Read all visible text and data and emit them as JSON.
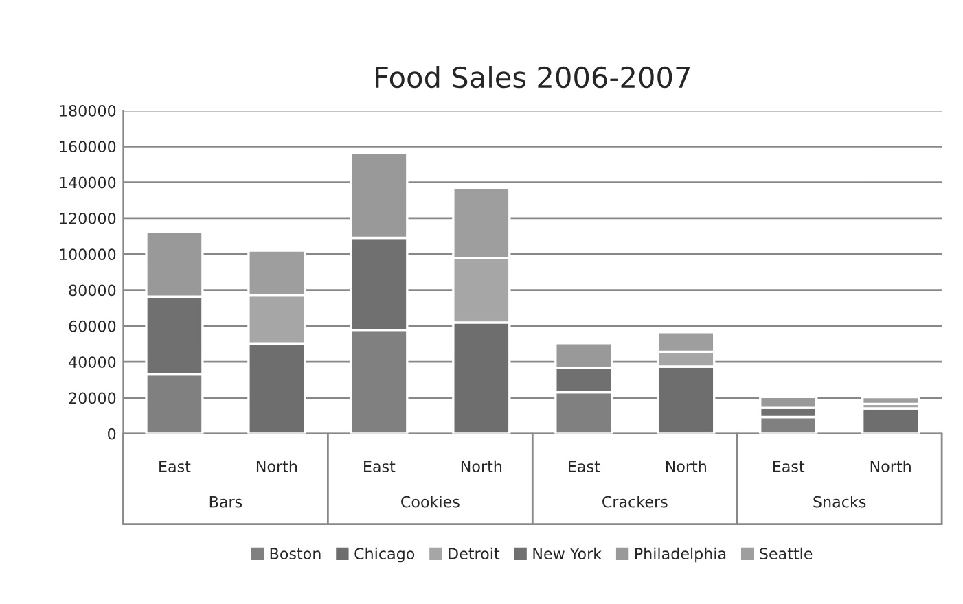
{
  "chart_data": {
    "type": "bar",
    "title": "Food Sales 2006-2007",
    "stacked": true,
    "categories": [
      "East",
      "North",
      "East",
      "North",
      "East",
      "North",
      "East",
      "North"
    ],
    "annotations": [
      "Bars",
      "Cookies",
      "Crackers",
      "Snacks"
    ],
    "series": [
      {
        "name": "Boston",
        "color": "#808080",
        "values": [
          33000,
          null,
          57800,
          null,
          23000,
          null,
          9300,
          null
        ]
      },
      {
        "name": "Chicago",
        "color": "#6e6e6e",
        "values": [
          null,
          50000,
          null,
          61900,
          null,
          37400,
          null,
          14100
        ]
      },
      {
        "name": "Detroit",
        "color": "#a6a6a6",
        "values": [
          null,
          27300,
          null,
          35900,
          null,
          8300,
          null,
          2500
        ]
      },
      {
        "name": "New York",
        "color": "#707070",
        "values": [
          43300,
          null,
          51300,
          null,
          13600,
          null,
          5100,
          null
        ]
      },
      {
        "name": "Philadelphia",
        "color": "#999999",
        "values": [
          36300,
          null,
          47500,
          null,
          13900,
          null,
          6100,
          null
        ]
      },
      {
        "name": "Seattle",
        "color": "#9e9e9e",
        "values": [
          null,
          24700,
          null,
          39100,
          null,
          10900,
          null,
          3800
        ]
      }
    ],
    "ylim": [
      0,
      180000
    ],
    "yticks": [
      0,
      20000,
      40000,
      60000,
      80000,
      100000,
      120000,
      140000,
      160000,
      180000
    ],
    "grid": "y",
    "legend": "bottom"
  }
}
